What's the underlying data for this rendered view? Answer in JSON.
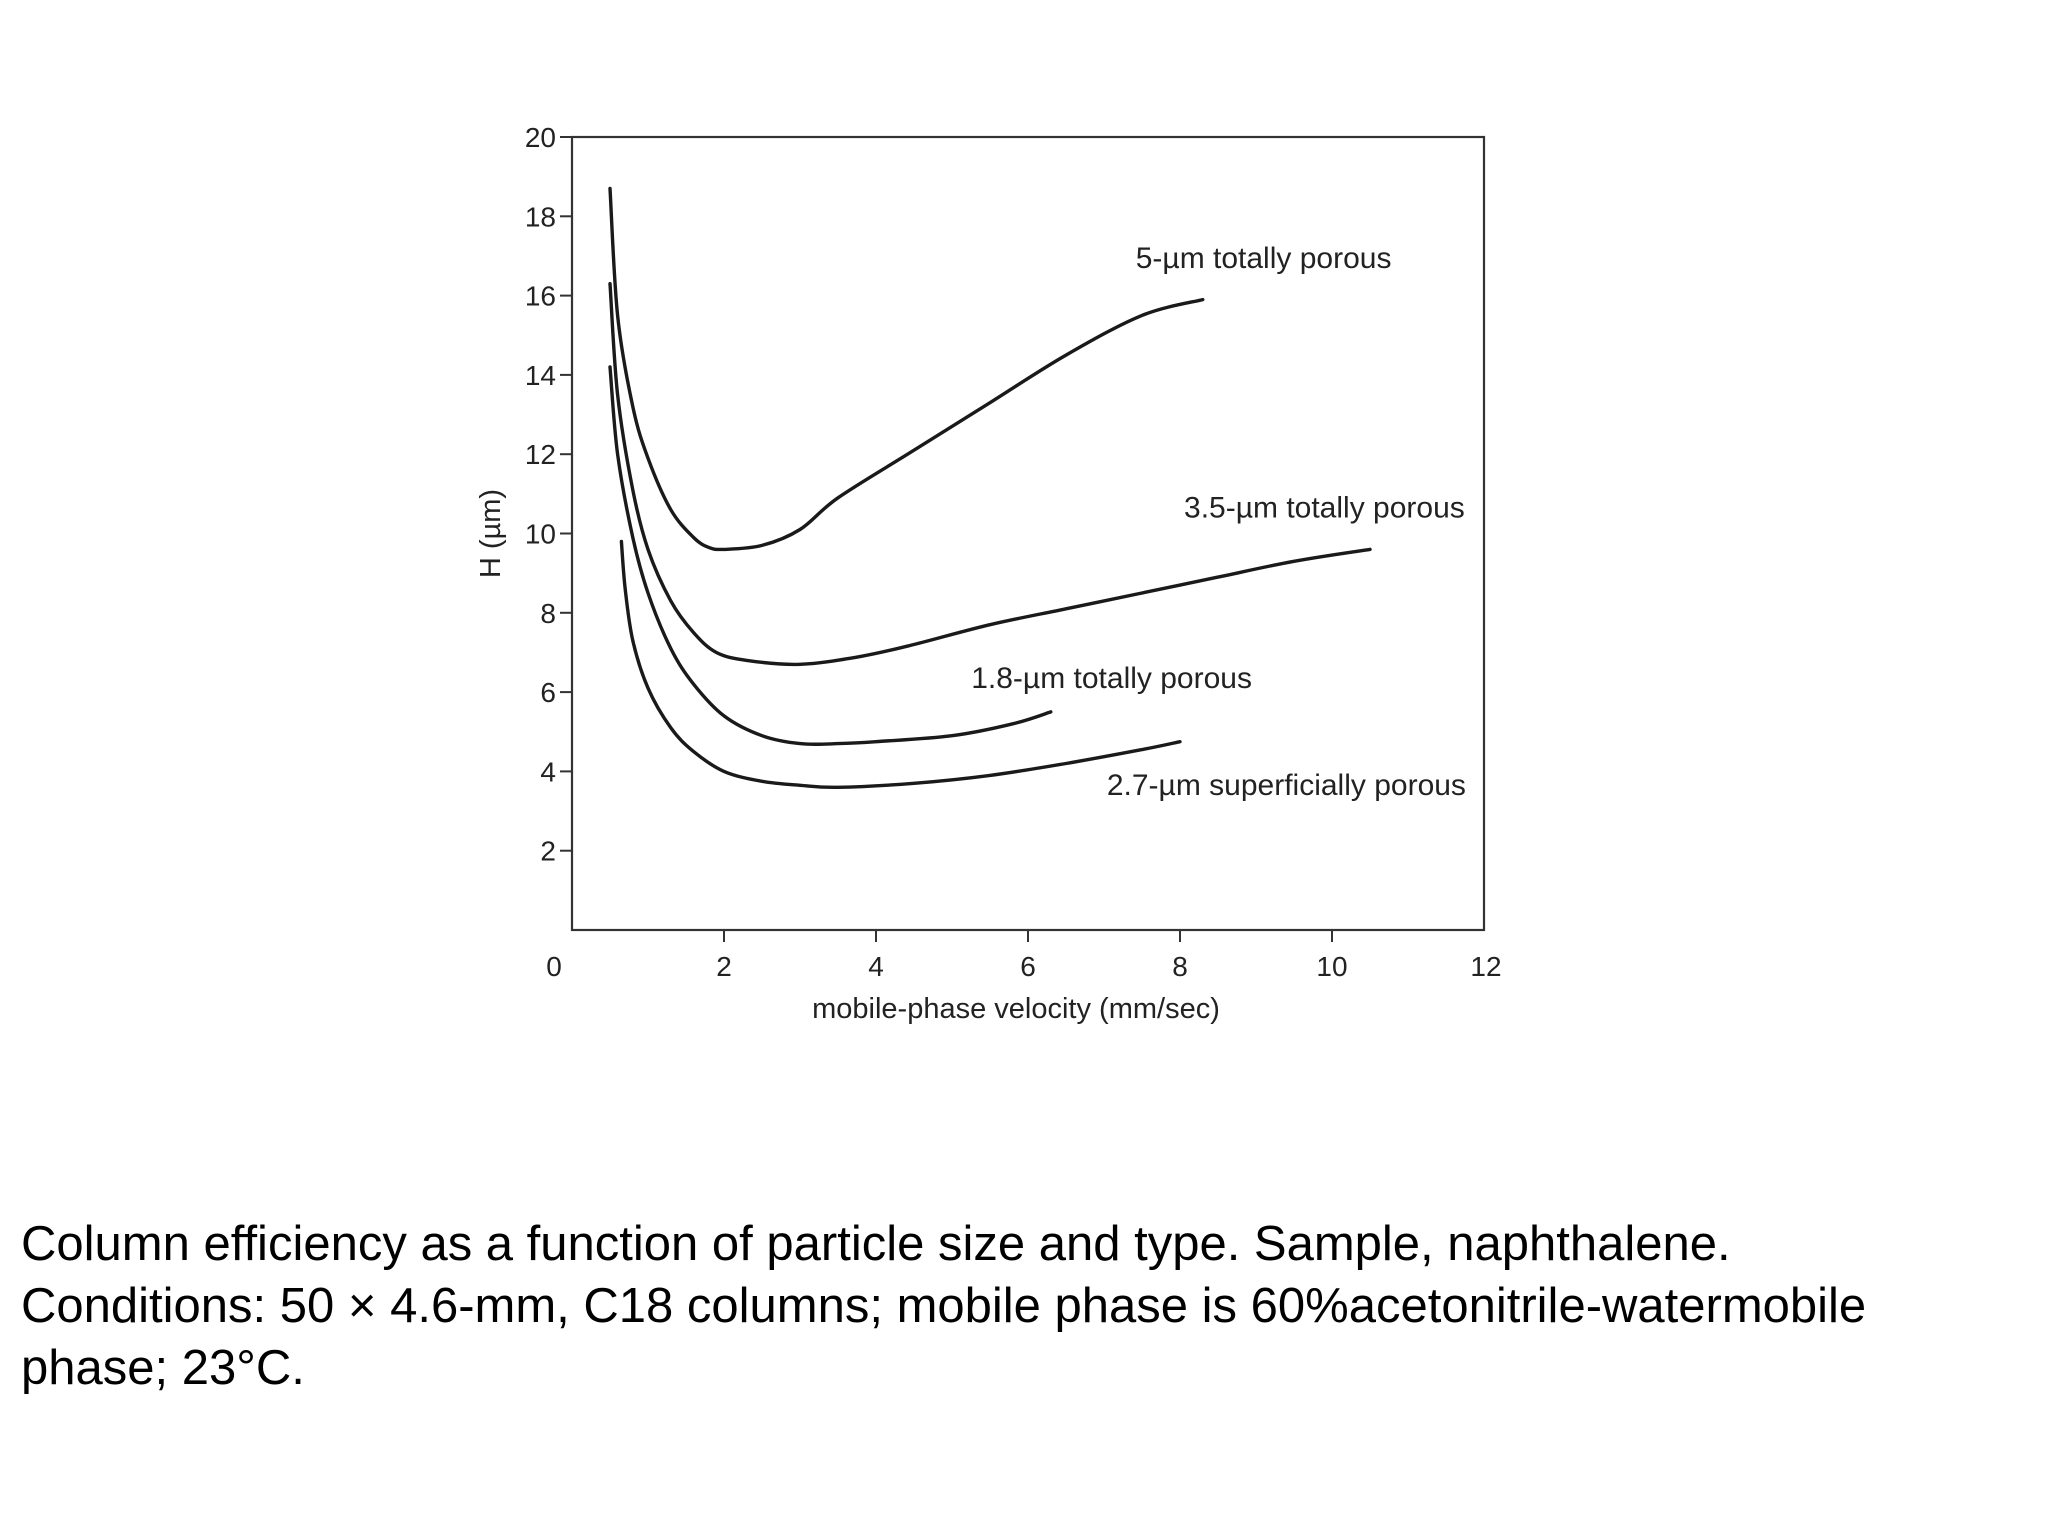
{
  "chart_data": {
    "type": "line",
    "xlabel": "mobile-phase velocity (mm/sec)",
    "ylabel": "H (µm)",
    "xlim": [
      0,
      12
    ],
    "ylim": [
      0,
      20
    ],
    "x_ticks": [
      0,
      2,
      4,
      6,
      8,
      10,
      12
    ],
    "y_ticks": [
      2,
      4,
      6,
      8,
      10,
      12,
      14,
      16,
      18,
      20
    ],
    "grid": false,
    "legend": "none (series labeled directly on plot)",
    "series": [
      {
        "name": "5-µm totally porous",
        "color": "#1a1a1a",
        "x": [
          0.5,
          0.6,
          0.8,
          1.0,
          1.3,
          1.6,
          1.8,
          2.0,
          2.5,
          3.0,
          3.5,
          4.5,
          5.5,
          6.5,
          7.5,
          8.3
        ],
        "y": [
          18.7,
          15.5,
          13.2,
          11.9,
          10.6,
          9.9,
          9.65,
          9.6,
          9.7,
          10.1,
          10.9,
          12.1,
          13.3,
          14.5,
          15.5,
          15.9
        ]
      },
      {
        "name": "3.5-µm totally porous",
        "color": "#1a1a1a",
        "x": [
          0.5,
          0.6,
          0.8,
          1.0,
          1.3,
          1.6,
          1.9,
          2.3,
          3.0,
          3.8,
          4.5,
          5.5,
          6.5,
          7.5,
          8.5,
          9.5,
          10.5
        ],
        "y": [
          16.3,
          13.5,
          11.1,
          9.6,
          8.3,
          7.5,
          7.0,
          6.8,
          6.7,
          6.9,
          7.2,
          7.7,
          8.1,
          8.5,
          8.9,
          9.3,
          9.6
        ]
      },
      {
        "name": "1.8-µm totally porous",
        "color": "#1a1a1a",
        "x": [
          0.5,
          0.6,
          0.8,
          1.0,
          1.3,
          1.6,
          2.0,
          2.5,
          3.0,
          3.5,
          4.0,
          5.0,
          5.8,
          6.3
        ],
        "y": [
          14.2,
          12.0,
          9.9,
          8.5,
          7.1,
          6.2,
          5.4,
          4.9,
          4.7,
          4.7,
          4.75,
          4.9,
          5.2,
          5.5
        ]
      },
      {
        "name": "2.7-µm superficially porous",
        "color": "#1a1a1a",
        "x": [
          0.65,
          0.7,
          0.8,
          1.0,
          1.3,
          1.6,
          2.0,
          2.5,
          3.0,
          3.5,
          4.5,
          5.5,
          6.5,
          7.5,
          8.0
        ],
        "y": [
          9.8,
          8.6,
          7.3,
          6.1,
          5.1,
          4.5,
          4.0,
          3.75,
          3.65,
          3.6,
          3.7,
          3.9,
          4.2,
          4.55,
          4.75
        ]
      }
    ],
    "annotations": [
      {
        "text": "5-µm totally porous",
        "x": 9.1,
        "y": 16.7
      },
      {
        "text": "3.5-µm totally porous",
        "x": 9.9,
        "y": 10.4
      },
      {
        "text": "1.8-µm totally porous",
        "x": 7.1,
        "y": 6.1
      },
      {
        "text": "2.7-µm superficially porous",
        "x": 9.4,
        "y": 3.4
      }
    ]
  },
  "caption": {
    "line1": "Column efficiency as a function of particle size and type. Sample, naphthalene.",
    "line2": "Conditions: 50 × 4.6-mm, C18 columns; mobile phase is 60%acetonitrile-watermobile",
    "line3": "phase; 23°C."
  }
}
